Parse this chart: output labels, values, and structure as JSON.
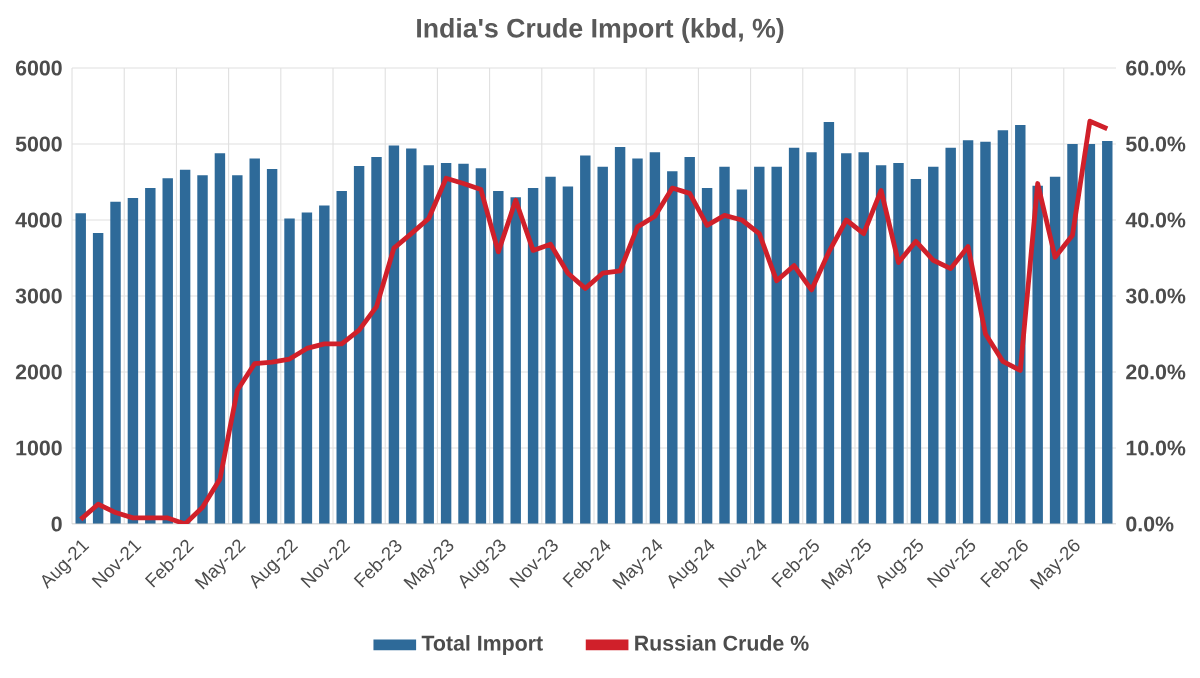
{
  "chart_data": {
    "type": "bar",
    "title": "India's Crude Import (kbd, %)",
    "categories": [
      "Aug-21",
      null,
      null,
      "Nov-21",
      null,
      null,
      "Feb-22",
      null,
      null,
      "May-22",
      null,
      null,
      "Aug-22",
      null,
      null,
      "Nov-22",
      null,
      null,
      "Feb-23",
      null,
      null,
      "May-23",
      null,
      null,
      "Aug-23",
      null,
      null,
      "Nov-23",
      null,
      null,
      "Feb-24",
      null,
      null,
      "May-24",
      null,
      null,
      "Aug-24",
      null,
      null,
      "Nov-24",
      null,
      null,
      "Feb-25",
      null,
      null,
      "May-25",
      null,
      null,
      "Aug-25",
      null,
      null,
      "Nov-25",
      null,
      null,
      "Feb-26",
      null,
      null,
      "May-26",
      null,
      null
    ],
    "series": [
      {
        "name": "Total Import",
        "color": "#2e6a99",
        "values": [
          4090,
          3830,
          4240,
          4290,
          4420,
          4550,
          4660,
          4590,
          4880,
          4590,
          4810,
          4670,
          4020,
          4100,
          4190,
          4380,
          4710,
          4830,
          4980,
          4940,
          4720,
          4750,
          4740,
          4680,
          4380,
          4300,
          4420,
          4570,
          4440,
          4850,
          4700,
          4960,
          4810,
          4890,
          4640,
          4830,
          4420,
          4700,
          4400,
          4700,
          4700,
          4950,
          4890,
          5290,
          4880,
          4890,
          4720,
          4750,
          4540,
          4700,
          4950,
          5050,
          5030,
          5180,
          5250,
          4450,
          4570,
          5000,
          5000,
          5040
        ]
      },
      {
        "name": "Russian Crude %",
        "type": "line",
        "axis": "y2",
        "color": "#d0202a",
        "values": [
          0.6,
          2.6,
          1.5,
          0.8,
          0.8,
          0.8,
          0,
          2.2,
          5.9,
          17.6,
          21.1,
          21.3,
          21.7,
          23.1,
          23.7,
          23.7,
          25.5,
          28.6,
          36.3,
          38.2,
          40.2,
          45.5,
          44.8,
          44.0,
          35.8,
          42.6,
          36.0,
          36.8,
          33.0,
          31.0,
          33.0,
          33.3,
          39.1,
          40.5,
          44.2,
          43.5,
          39.3,
          40.6,
          40.0,
          38.2,
          32.0,
          34.0,
          30.8,
          35.8,
          40.0,
          38.2,
          43.9,
          34.4,
          37.2,
          34.7,
          33.6,
          36.5,
          25.0,
          21.4,
          20.2,
          44.8,
          35.1,
          38.0,
          53.0,
          52.0
        ]
      }
    ],
    "ylim": [
      0,
      6000
    ],
    "yticks": [
      0,
      1000,
      2000,
      3000,
      4000,
      5000,
      6000
    ],
    "y2lim": [
      0,
      60
    ],
    "y2ticks": [
      {
        "value": 0,
        "label": "0.0%"
      },
      {
        "value": 10,
        "label": "10.0%"
      },
      {
        "value": 20,
        "label": "20.0%"
      },
      {
        "value": 30,
        "label": "30.0%"
      },
      {
        "value": 40,
        "label": "40.0%"
      },
      {
        "value": 50,
        "label": "50.0%"
      },
      {
        "value": 60,
        "label": "60.0%"
      }
    ],
    "grid": true,
    "legend": "bottom"
  }
}
